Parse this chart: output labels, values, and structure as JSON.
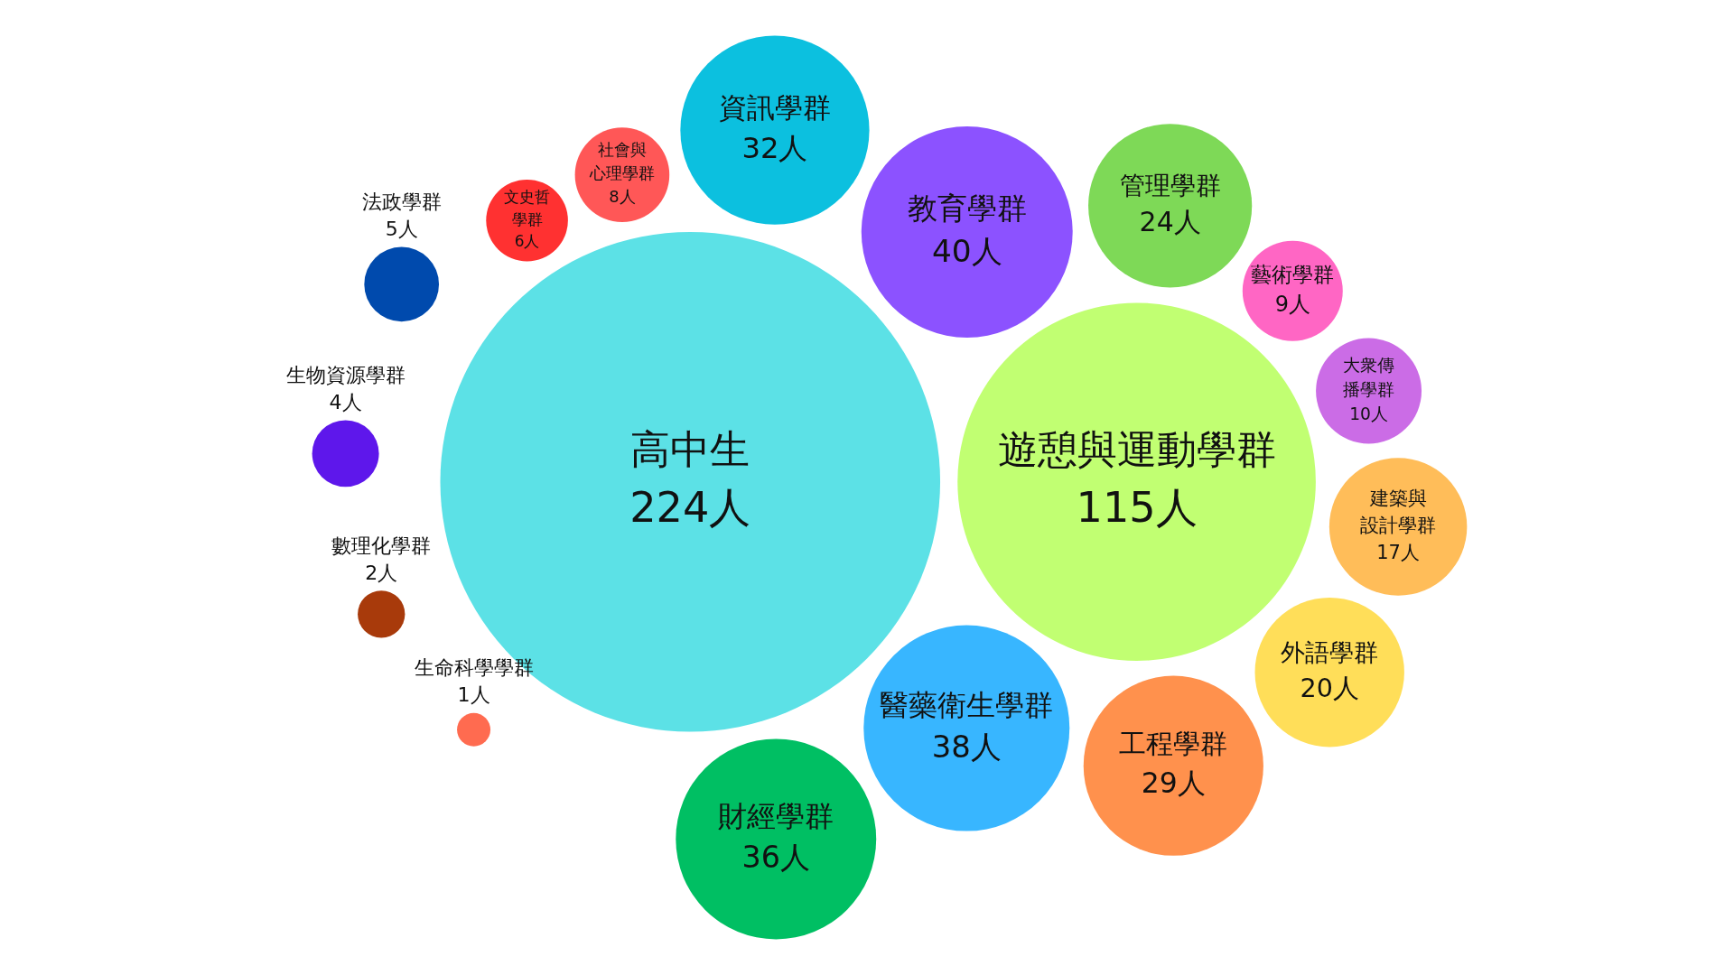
{
  "chart_data": {
    "type": "other",
    "categories": [
      "高中生",
      "遊憩與運動學群",
      "教育學群",
      "醫藥衛生學群",
      "財經學群",
      "資訊學群",
      "工程學群",
      "管理學群",
      "外語學群",
      "建築與設計學群",
      "大衆傳播學群",
      "藝術學群",
      "社會與心理學群",
      "文史哲學群",
      "法政學群",
      "生物資源學群",
      "數理化學群",
      "生命科學學群"
    ],
    "values": [
      224,
      115,
      40,
      38,
      36,
      32,
      29,
      24,
      20,
      17,
      10,
      9,
      8,
      6,
      5,
      4,
      2,
      1
    ],
    "value_labels": [
      "224人",
      "115人",
      "40人",
      "38人",
      "36人",
      "32人",
      "29人",
      "24人",
      "20人",
      "17人",
      "10人",
      "9人",
      "8人",
      "6人",
      "5人",
      "4人",
      "2人",
      "1人"
    ],
    "colors": [
      "#5ce1e6",
      "#c1ff72",
      "#8c52ff",
      "#38b6ff",
      "#00bf63",
      "#0cc0df",
      "#ff914d",
      "#7ed957",
      "#ffde59",
      "#ffbd59",
      "#cb6ce6",
      "#ff66c4",
      "#ff5757",
      "#ff3131",
      "#004aad",
      "#5e17eb",
      "#a83a0b",
      "#ff6b50"
    ]
  }
}
